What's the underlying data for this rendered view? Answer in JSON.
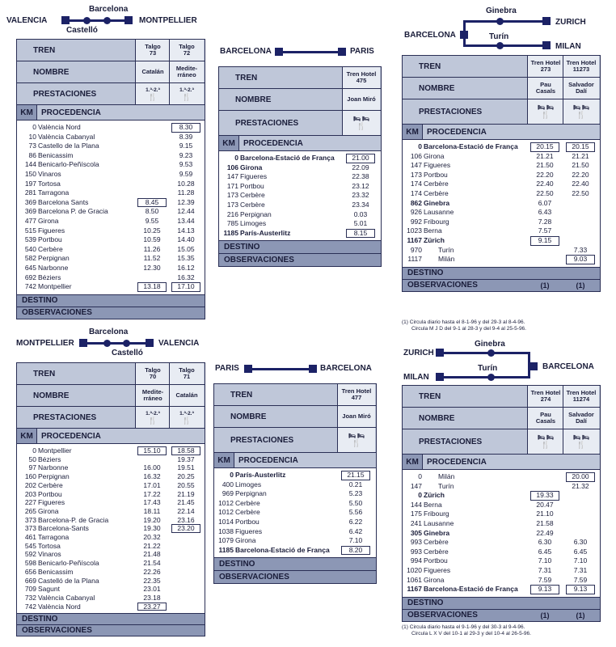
{
  "colors": {
    "navy": "#1c2266",
    "header_blue": "#bfc7d9",
    "dark_band": "#8c97b5"
  },
  "labels": {
    "tren": "TREN",
    "nombre": "NOMBRE",
    "prestaciones": "PRESTACIONES",
    "km": "KM",
    "procedencia": "PROCEDENCIA",
    "destino": "DESTINO",
    "observaciones": "OBSERVACIONES"
  },
  "p1": {
    "route": {
      "left": "VALENCIA",
      "top": "Barcelona",
      "right": "MONTPELLIER",
      "bottom": "Castelló"
    },
    "trains": [
      {
        "tren": "Talgo\n73",
        "nombre": "Catalán",
        "prest": "1.ª-2.ª"
      },
      {
        "tren": "Talgo\n72",
        "nombre": "Medite-\nrráneo",
        "prest": "1.ª-2.ª"
      }
    ],
    "rows": [
      {
        "km": "0",
        "name": "València Nord",
        "t": [
          "",
          "8.30"
        ],
        "box": [
          false,
          true
        ]
      },
      {
        "km": "10",
        "name": "València Cabanyal",
        "t": [
          "",
          "8.39"
        ]
      },
      {
        "km": "73",
        "name": "Castello de la Plana",
        "t": [
          "",
          "9.15"
        ]
      },
      {
        "km": "86",
        "name": "Benicassim",
        "t": [
          "",
          "9.23"
        ]
      },
      {
        "km": "144",
        "name": "Benicarlo-Peñíscola",
        "t": [
          "",
          "9.53"
        ]
      },
      {
        "km": "150",
        "name": "Vinaros",
        "t": [
          "",
          "9.59"
        ]
      },
      {
        "km": "197",
        "name": "Tortosa",
        "t": [
          "",
          "10.28"
        ]
      },
      {
        "km": "281",
        "name": "Tarragona",
        "t": [
          "",
          "11.28"
        ]
      },
      {
        "km": "369",
        "name": "Barcelona Sants",
        "t": [
          "8.45",
          "12.39"
        ],
        "box": [
          true,
          false
        ]
      },
      {
        "km": "369",
        "name": "Barcelona P. de Gracia",
        "t": [
          "8.50",
          "12.44"
        ]
      },
      {
        "km": "477",
        "name": "Girona",
        "t": [
          "9.55",
          "13.44"
        ]
      },
      {
        "km": "515",
        "name": "Figueres",
        "t": [
          "10.25",
          "14.13"
        ]
      },
      {
        "km": "539",
        "name": "Portbou",
        "t": [
          "10.59",
          "14.40"
        ]
      },
      {
        "km": "540",
        "name": "Cerbère",
        "t": [
          "11.26",
          "15.05"
        ]
      },
      {
        "km": "582",
        "name": "Perpignan",
        "t": [
          "11.52",
          "15.35"
        ]
      },
      {
        "km": "645",
        "name": "Narbonne",
        "t": [
          "12.30",
          "16.12"
        ]
      },
      {
        "km": "692",
        "name": "Béziers",
        "t": [
          "",
          "16.32"
        ]
      },
      {
        "km": "742",
        "name": "Montpellier",
        "t": [
          "13.18",
          "17.10"
        ],
        "box": [
          true,
          true
        ]
      }
    ]
  },
  "p2": {
    "route": {
      "left": "BARCELONA",
      "right": "PARIS"
    },
    "trains": [
      {
        "tren": "Tren Hotel\n475",
        "nombre": "Joan Miró"
      }
    ],
    "rows": [
      {
        "km": "0",
        "name": "Barcelona-Estació de França",
        "t": [
          "21.00"
        ],
        "box": [
          true
        ],
        "bold": true
      },
      {
        "km": "106",
        "name": "Girona",
        "t": [
          "22.09"
        ],
        "bold": true
      },
      {
        "km": "147",
        "name": "Figueres",
        "t": [
          "22.38"
        ]
      },
      {
        "km": "171",
        "name": "Portbou",
        "t": [
          "23.12"
        ]
      },
      {
        "km": "173",
        "name": "Cerbère",
        "t": [
          "23.32"
        ]
      },
      {
        "km": "173",
        "name": "Cerbère",
        "t": [
          "23.34"
        ]
      },
      {
        "km": "216",
        "name": "Perpignan",
        "t": [
          "0.03"
        ]
      },
      {
        "km": "785",
        "name": "Limoges",
        "t": [
          "5.01"
        ]
      },
      {
        "km": "1185",
        "name": "París-Austerlitz",
        "t": [
          "8.15"
        ],
        "box": [
          true
        ],
        "bold": true
      }
    ]
  },
  "p3": {
    "route": {
      "top": "Ginebra",
      "right_top": "ZURICH",
      "left": "BARCELONA",
      "middle": "Turín",
      "right_bottom": "MILAN"
    },
    "trains": [
      {
        "tren": "Tren Hotel\n273",
        "nombre": "Pau\nCasals"
      },
      {
        "tren": "Tren Hotel\n11273",
        "nombre": "Salvador\nDalí"
      }
    ],
    "rows": [
      {
        "km": "0",
        "name": "Barcelona-Estació de França",
        "t": [
          "20.15",
          "20.15"
        ],
        "box": [
          true,
          true
        ],
        "bold": true
      },
      {
        "km": "106",
        "name": "Girona",
        "t": [
          "21.21",
          "21.21"
        ]
      },
      {
        "km": "147",
        "name": "Figueres",
        "t": [
          "21.50",
          "21.50"
        ]
      },
      {
        "km": "173",
        "name": "Portbou",
        "t": [
          "22.20",
          "22.20"
        ]
      },
      {
        "km": "174",
        "name": "Cerbère",
        "t": [
          "22.40",
          "22.40"
        ]
      },
      {
        "km": "174",
        "name": "Cerbère",
        "t": [
          "22.50",
          "22.50"
        ]
      },
      {
        "km": "862",
        "name": "Ginebra",
        "t": [
          "6.07",
          ""
        ],
        "bold": true
      },
      {
        "km": "926",
        "name": "Lausanne",
        "t": [
          "6.43",
          ""
        ]
      },
      {
        "km": "992",
        "name": "Fribourg",
        "t": [
          "7.28",
          ""
        ]
      },
      {
        "km": "1023",
        "name": "Berna",
        "t": [
          "7.57",
          ""
        ]
      },
      {
        "km": "1167",
        "name": "Zürich",
        "t": [
          "9.15",
          ""
        ],
        "box": [
          true,
          false
        ],
        "bold": true
      },
      {
        "km": "970",
        "name": "Turín",
        "t": [
          "",
          "7.33"
        ],
        "indent": true
      },
      {
        "km": "1117",
        "name": "Milán",
        "t": [
          "",
          "9.03"
        ],
        "box": [
          false,
          true
        ],
        "indent": true
      }
    ],
    "observaciones": [
      "(1)",
      "(1)"
    ],
    "notes": [
      "(1) Circula diario hasta el 8-1-96 y del 29-3 al 8-4-96.",
      "Circula M J D del 9-1 al 28-3 y del 9-4 al 25-5-96."
    ]
  },
  "p4": {
    "route": {
      "left": "MONTPELLIER",
      "top": "Barcelona",
      "right": "VALENCIA",
      "bottom": "Castelló"
    },
    "trains": [
      {
        "tren": "Talgo\n70",
        "nombre": "Medite-\nrráneo",
        "prest": "1.ª-2.ª"
      },
      {
        "tren": "Talgo\n71",
        "nombre": "Catalán",
        "prest": "1.ª-2.ª"
      }
    ],
    "rows": [
      {
        "km": "0",
        "name": "Montpellier",
        "t": [
          "15.10",
          "18.58"
        ],
        "box": [
          true,
          true
        ]
      },
      {
        "km": "50",
        "name": "Béziers",
        "t": [
          "",
          "19.37"
        ]
      },
      {
        "km": "97",
        "name": "Narbonne",
        "t": [
          "16.00",
          "19.51"
        ]
      },
      {
        "km": "160",
        "name": "Perpignan",
        "t": [
          "16.32",
          "20.25"
        ]
      },
      {
        "km": "202",
        "name": "Cerbère",
        "t": [
          "17.01",
          "20.55"
        ]
      },
      {
        "km": "203",
        "name": "Portbou",
        "t": [
          "17.22",
          "21.19"
        ]
      },
      {
        "km": "227",
        "name": "Figueres",
        "t": [
          "17.43",
          "21.45"
        ]
      },
      {
        "km": "265",
        "name": "Girona",
        "t": [
          "18.11",
          "22.14"
        ]
      },
      {
        "km": "373",
        "name": "Barcelona-P. de Gracia",
        "t": [
          "19.20",
          "23.16"
        ]
      },
      {
        "km": "373",
        "name": "Barcelona-Sants",
        "t": [
          "19.30",
          "23.20"
        ],
        "box": [
          false,
          true
        ]
      },
      {
        "km": "461",
        "name": "Tarragona",
        "t": [
          "20.32",
          ""
        ]
      },
      {
        "km": "545",
        "name": "Tortosa",
        "t": [
          "21.22",
          ""
        ]
      },
      {
        "km": "592",
        "name": "Vinaros",
        "t": [
          "21.48",
          ""
        ]
      },
      {
        "km": "598",
        "name": "Benicarlo-Peñíscola",
        "t": [
          "21.54",
          ""
        ]
      },
      {
        "km": "656",
        "name": "Benicassim",
        "t": [
          "22.26",
          ""
        ]
      },
      {
        "km": "669",
        "name": "Castelló de la Plana",
        "t": [
          "22.35",
          ""
        ]
      },
      {
        "km": "709",
        "name": "Sagunt",
        "t": [
          "23.01",
          ""
        ]
      },
      {
        "km": "732",
        "name": "València Cabanyal",
        "t": [
          "23.18",
          ""
        ]
      },
      {
        "km": "742",
        "name": "València Nord",
        "t": [
          "23.27",
          ""
        ],
        "box": [
          true,
          false
        ]
      }
    ]
  },
  "p5": {
    "route": {
      "left": "PARIS",
      "right": "BARCELONA"
    },
    "trains": [
      {
        "tren": "Tren Hotel\n477",
        "nombre": "Joan Miró"
      }
    ],
    "rows": [
      {
        "km": "0",
        "name": "París-Austerlitz",
        "t": [
          "21.15"
        ],
        "box": [
          true
        ],
        "bold": true
      },
      {
        "km": "400",
        "name": "Limoges",
        "t": [
          "0.21"
        ]
      },
      {
        "km": "969",
        "name": "Perpignan",
        "t": [
          "5.23"
        ]
      },
      {
        "km": "1012",
        "name": "Cerbère",
        "t": [
          "5.50"
        ]
      },
      {
        "km": "1012",
        "name": "Cerbère",
        "t": [
          "5.56"
        ]
      },
      {
        "km": "1014",
        "name": "Portbou",
        "t": [
          "6.22"
        ]
      },
      {
        "km": "1038",
        "name": "Figueres",
        "t": [
          "6.42"
        ]
      },
      {
        "km": "1079",
        "name": "Girona",
        "t": [
          "7.10"
        ]
      },
      {
        "km": "1185",
        "name": "Barcelona-Estació de França",
        "t": [
          "8.20"
        ],
        "box": [
          true
        ],
        "bold": true
      }
    ]
  },
  "p6": {
    "route": {
      "left_top": "ZURICH",
      "top": "Ginebra",
      "middle": "Turín",
      "right": "BARCELONA",
      "left_bottom": "MILAN"
    },
    "trains": [
      {
        "tren": "Tren Hotel\n274",
        "nombre": "Pau\nCasals"
      },
      {
        "tren": "Tren Hotel\n11274",
        "nombre": "Salvador\nDalí"
      }
    ],
    "rows": [
      {
        "km": "0",
        "name": "Milán",
        "t": [
          "",
          "20.00"
        ],
        "box": [
          false,
          true
        ],
        "indent": true
      },
      {
        "km": "147",
        "name": "Turín",
        "t": [
          "",
          "21.32"
        ],
        "indent": true
      },
      {
        "km": "0",
        "name": "Zürich",
        "t": [
          "19.33",
          ""
        ],
        "box": [
          true,
          false
        ],
        "bold": true
      },
      {
        "km": "144",
        "name": "Berna",
        "t": [
          "20.47",
          ""
        ]
      },
      {
        "km": "175",
        "name": "Fribourg",
        "t": [
          "21.10",
          ""
        ]
      },
      {
        "km": "241",
        "name": "Lausanne",
        "t": [
          "21.58",
          ""
        ]
      },
      {
        "km": "305",
        "name": "Ginebra",
        "t": [
          "22.49",
          ""
        ],
        "bold": true
      },
      {
        "km": "993",
        "name": "Cerbère",
        "t": [
          "6.30",
          "6.30"
        ]
      },
      {
        "km": "993",
        "name": "Cerbère",
        "t": [
          "6.45",
          "6.45"
        ]
      },
      {
        "km": "994",
        "name": "Portbou",
        "t": [
          "7.10",
          "7.10"
        ]
      },
      {
        "km": "1020",
        "name": "Figueres",
        "t": [
          "7.31",
          "7.31"
        ]
      },
      {
        "km": "1061",
        "name": "Girona",
        "t": [
          "7.59",
          "7.59"
        ]
      },
      {
        "km": "1167",
        "name": "Barcelona-Estació de França",
        "t": [
          "9.13",
          "9.13"
        ],
        "box": [
          true,
          true
        ],
        "bold": true
      }
    ],
    "observaciones": [
      "(1)",
      "(1)"
    ],
    "notes": [
      "(1) Circula diario hasta el 9-1-96 y del 30-3 al 9-4-96.",
      "Circula L X V del 10-1 al 29-3 y del 10-4 al 26-5-96."
    ]
  }
}
